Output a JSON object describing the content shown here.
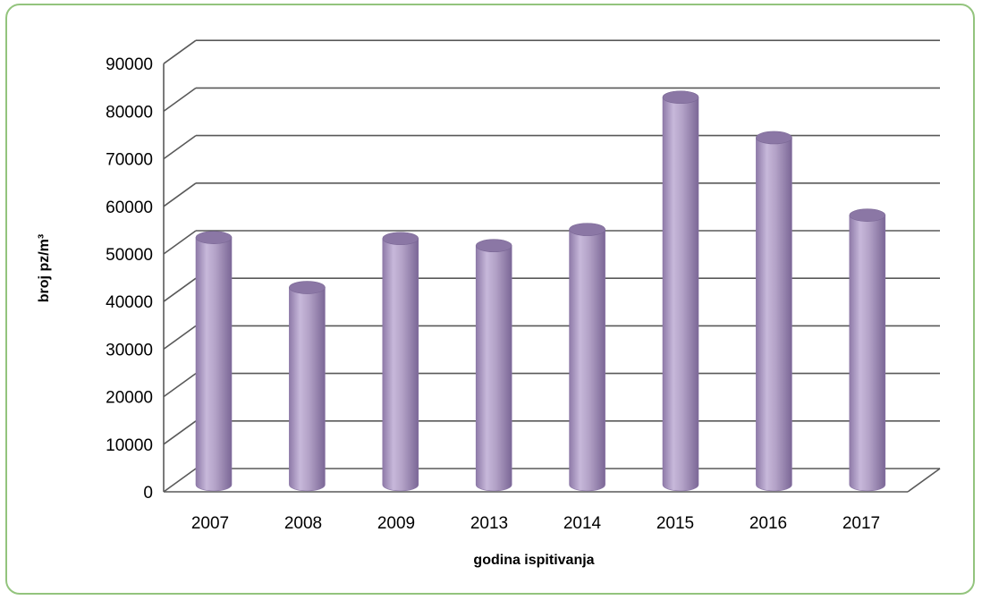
{
  "chart_data": {
    "type": "bar",
    "style": "3d-cylinder",
    "categories": [
      "2007",
      "2008",
      "2009",
      "2013",
      "2014",
      "2015",
      "2016",
      "2017"
    ],
    "values": [
      51000,
      40500,
      50800,
      49300,
      52700,
      80500,
      72000,
      55700
    ],
    "xlabel": "godina ispitivanja",
    "ylabel": "broj pz/m³",
    "ylim": [
      0,
      90000
    ],
    "yticks": [
      0,
      10000,
      20000,
      30000,
      40000,
      50000,
      60000,
      70000,
      80000,
      90000
    ],
    "grid": true,
    "legend": "none",
    "colors": {
      "bar": "#b3a2c7",
      "frame": "#93c47d",
      "grid": "#595959"
    }
  }
}
